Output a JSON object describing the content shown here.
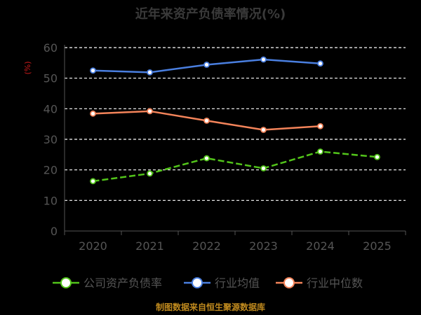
{
  "chart_data": {
    "type": "line",
    "title": "近年来资产负债率情况(%)",
    "ylabel": "(%)",
    "xlabel": "",
    "categories": [
      "2020",
      "2021",
      "2022",
      "2023",
      "2024",
      "2025"
    ],
    "ylim": [
      0,
      60
    ],
    "yticks": [
      0,
      10,
      20,
      30,
      40,
      50,
      60
    ],
    "grid": true,
    "legend_position": "bottom",
    "series": [
      {
        "name": "公司资产负债率",
        "color": "#52c41a",
        "dashed": true,
        "values": [
          16.3,
          18.8,
          23.8,
          20.5,
          26.0,
          24.2
        ]
      },
      {
        "name": "行业均值",
        "color": "#4a7fe0",
        "dashed": false,
        "values": [
          52.5,
          51.9,
          54.4,
          56.1,
          54.8,
          null
        ]
      },
      {
        "name": "行业中位数",
        "color": "#f4845a",
        "dashed": false,
        "values": [
          38.4,
          39.2,
          36.1,
          33.1,
          34.3,
          null
        ]
      }
    ]
  },
  "source": "制图数据来自恒生聚源数据库"
}
